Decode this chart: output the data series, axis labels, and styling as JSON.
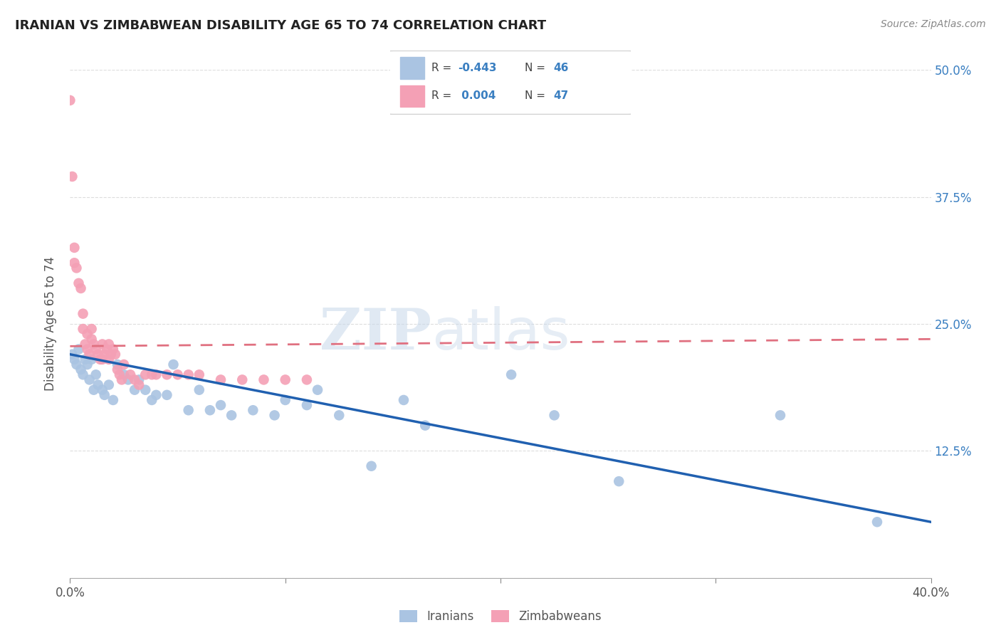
{
  "title": "IRANIAN VS ZIMBABWEAN DISABILITY AGE 65 TO 74 CORRELATION CHART",
  "source": "Source: ZipAtlas.com",
  "ylabel": "Disability Age 65 to 74",
  "x_min": 0.0,
  "x_max": 0.4,
  "y_min": 0.0,
  "y_max": 0.5,
  "iranian_color": "#aac4e2",
  "zimbabwean_color": "#f4a0b5",
  "iranian_line_color": "#2060b0",
  "zimbabwean_line_color": "#e07080",
  "R_iranian": -0.443,
  "N_iranian": 46,
  "R_zimbabwean": 0.004,
  "N_zimbabwean": 47,
  "watermark_zip": "ZIP",
  "watermark_atlas": "atlas",
  "iranian_x": [
    0.001,
    0.002,
    0.003,
    0.004,
    0.005,
    0.006,
    0.007,
    0.008,
    0.009,
    0.01,
    0.011,
    0.012,
    0.013,
    0.015,
    0.016,
    0.018,
    0.02,
    0.022,
    0.025,
    0.027,
    0.03,
    0.032,
    0.035,
    0.038,
    0.04,
    0.045,
    0.048,
    0.055,
    0.06,
    0.065,
    0.07,
    0.075,
    0.085,
    0.095,
    0.1,
    0.11,
    0.115,
    0.125,
    0.14,
    0.155,
    0.165,
    0.205,
    0.225,
    0.255,
    0.33,
    0.375
  ],
  "iranian_y": [
    0.22,
    0.215,
    0.21,
    0.225,
    0.205,
    0.2,
    0.215,
    0.21,
    0.195,
    0.215,
    0.185,
    0.2,
    0.19,
    0.185,
    0.18,
    0.19,
    0.175,
    0.21,
    0.2,
    0.195,
    0.185,
    0.195,
    0.185,
    0.175,
    0.18,
    0.18,
    0.21,
    0.165,
    0.185,
    0.165,
    0.17,
    0.16,
    0.165,
    0.16,
    0.175,
    0.17,
    0.185,
    0.16,
    0.11,
    0.175,
    0.15,
    0.2,
    0.16,
    0.095,
    0.16,
    0.055
  ],
  "zimbabwean_x": [
    0.0,
    0.001,
    0.002,
    0.002,
    0.003,
    0.004,
    0.005,
    0.006,
    0.006,
    0.007,
    0.008,
    0.008,
    0.009,
    0.01,
    0.01,
    0.011,
    0.012,
    0.013,
    0.014,
    0.015,
    0.015,
    0.016,
    0.017,
    0.018,
    0.018,
    0.019,
    0.02,
    0.021,
    0.022,
    0.023,
    0.024,
    0.025,
    0.028,
    0.03,
    0.032,
    0.035,
    0.038,
    0.04,
    0.045,
    0.05,
    0.055,
    0.06,
    0.07,
    0.08,
    0.09,
    0.1,
    0.11
  ],
  "zimbabwean_y": [
    0.47,
    0.395,
    0.325,
    0.31,
    0.305,
    0.29,
    0.285,
    0.26,
    0.245,
    0.23,
    0.225,
    0.24,
    0.22,
    0.235,
    0.245,
    0.23,
    0.225,
    0.22,
    0.215,
    0.23,
    0.215,
    0.22,
    0.225,
    0.215,
    0.23,
    0.22,
    0.225,
    0.22,
    0.205,
    0.2,
    0.195,
    0.21,
    0.2,
    0.195,
    0.19,
    0.2,
    0.2,
    0.2,
    0.2,
    0.2,
    0.2,
    0.2,
    0.195,
    0.195,
    0.195,
    0.195,
    0.195
  ],
  "trend_iranian_x0": 0.0,
  "trend_iranian_x1": 0.4,
  "trend_iranian_y0": 0.22,
  "trend_iranian_y1": 0.055,
  "trend_zimbabwean_x0": 0.0,
  "trend_zimbabwean_x1": 0.4,
  "trend_zimbabwean_y0": 0.228,
  "trend_zimbabwean_y1": 0.235
}
